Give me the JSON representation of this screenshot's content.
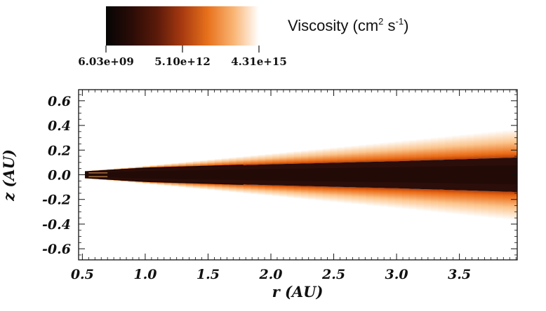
{
  "chart_data": {
    "type": "heatmap",
    "title": "",
    "xlabel": "r (AU)",
    "ylabel": "z (AU)",
    "xlim": [
      0.47,
      3.96
    ],
    "ylim": [
      -0.69,
      0.69
    ],
    "xticks": [
      0.5,
      1.0,
      1.5,
      2.0,
      2.5,
      3.0,
      3.5
    ],
    "xtick_labels": [
      "0.5",
      "1.0",
      "1.5",
      "2.0",
      "2.5",
      "3.0",
      "3.5"
    ],
    "yticks": [
      0.6,
      0.4,
      0.2,
      0.0,
      -0.2,
      -0.4,
      -0.6
    ],
    "ytick_labels": [
      "0.6",
      "0.4",
      "0.2",
      "0.0",
      "-0.2",
      "-0.4",
      "-0.6"
    ],
    "colorbar": {
      "title": "Viscosity (cm",
      "title_sup1": "2",
      "title_mid": " s",
      "title_sup2": "-1",
      "title_end": ")",
      "scale": "log",
      "min": 6030000000.0,
      "mid": 5100000000000.0,
      "max": 4310000000000000.0,
      "tick_labels": [
        "6.03e+09",
        "5.10e+12",
        "4.31e+15"
      ],
      "colors": [
        "#050505",
        "#2a0c07",
        "#5a1a0a",
        "#a83a10",
        "#e8721c",
        "#f9b473",
        "#ffffff"
      ]
    },
    "field": {
      "description_free": true,
      "midplane_value": 6030000000.0,
      "surface_value": 4310000000000000.0,
      "inner_edge_r": 0.52,
      "dead_zone_half_height_at_r": [
        [
          0.52,
          0.025
        ],
        [
          1.0,
          0.055
        ],
        [
          2.0,
          0.085
        ],
        [
          3.0,
          0.11
        ],
        [
          3.96,
          0.14
        ]
      ],
      "active_layer_half_height_at_r": [
        [
          0.52,
          0.03
        ],
        [
          1.0,
          0.07
        ],
        [
          2.0,
          0.17
        ],
        [
          3.0,
          0.27
        ],
        [
          3.96,
          0.37
        ]
      ]
    }
  }
}
